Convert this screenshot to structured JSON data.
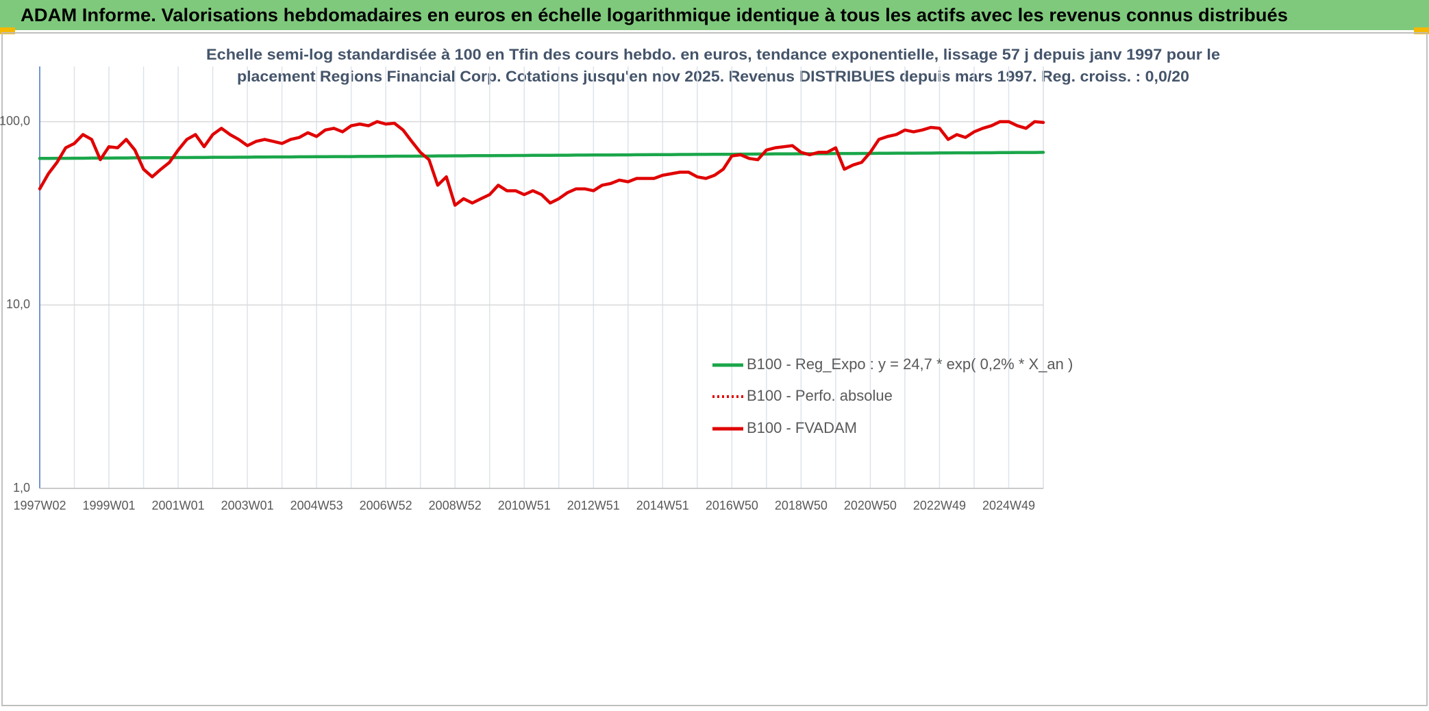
{
  "chart_data": {
    "type": "line",
    "header": "ADAM Informe. Valorisations hebdomadaires en euros en échelle logarithmique identique à tous les actifs avec les revenus connus distribués",
    "subtitle": [
      "Echelle semi-log standardisée à 100 en Tfin des cours hebdo. en euros, tendance exponentielle, lissage 57 j depuis janv 1997 pour le",
      "placement Regions Financial Corp. Cotations jusqu'en nov 2025. Revenus DISTRIBUES depuis mars 1997. Reg. croiss. : 0,0/20"
    ],
    "log_scale": true,
    "grid": true,
    "legend_position": "right",
    "ylim": [
      1,
      200
    ],
    "yticks": [
      {
        "value": 1,
        "label": "1,0"
      },
      {
        "value": 10,
        "label": "10,0"
      },
      {
        "value": 100,
        "label": "100,0"
      }
    ],
    "categories": [
      "1997W02",
      null,
      null,
      null,
      null,
      null,
      null,
      null,
      "1999W01",
      null,
      null,
      null,
      null,
      null,
      null,
      null,
      "2001W01",
      null,
      null,
      null,
      null,
      null,
      null,
      null,
      "2003W01",
      null,
      null,
      null,
      null,
      null,
      null,
      null,
      "2004W53",
      null,
      null,
      null,
      null,
      null,
      null,
      null,
      "2006W52",
      null,
      null,
      null,
      null,
      null,
      null,
      null,
      "2008W52",
      null,
      null,
      null,
      null,
      null,
      null,
      null,
      "2010W51",
      null,
      null,
      null,
      null,
      null,
      null,
      null,
      "2012W51",
      null,
      null,
      null,
      null,
      null,
      null,
      null,
      "2014W51",
      null,
      null,
      null,
      null,
      null,
      null,
      null,
      "2016W50",
      null,
      null,
      null,
      null,
      null,
      null,
      null,
      "2018W50",
      null,
      null,
      null,
      null,
      null,
      null,
      null,
      "2020W50",
      null,
      null,
      null,
      null,
      null,
      null,
      null,
      "2022W49",
      null,
      null,
      null,
      null,
      null,
      null,
      null,
      "2024W49",
      null,
      null,
      null,
      null
    ],
    "series": [
      {
        "name": "B100 - Reg_Expo : y = 24,7 * exp( 0,2% *  X_an )",
        "color": "#1aa64a",
        "style": "solid",
        "values": [
          63.0,
          63.0,
          63.1,
          63.1,
          63.2,
          63.2,
          63.3,
          63.3,
          63.3,
          63.4,
          63.4,
          63.5,
          63.5,
          63.6,
          63.6,
          63.6,
          63.7,
          63.7,
          63.8,
          63.8,
          63.9,
          63.9,
          63.9,
          64.0,
          64.0,
          64.1,
          64.1,
          64.2,
          64.2,
          64.2,
          64.3,
          64.3,
          64.4,
          64.4,
          64.5,
          64.5,
          64.5,
          64.6,
          64.6,
          64.7,
          64.7,
          64.8,
          64.8,
          64.8,
          64.9,
          64.9,
          65.0,
          65.0,
          65.1,
          65.1,
          65.2,
          65.2,
          65.2,
          65.3,
          65.3,
          65.4,
          65.4,
          65.5,
          65.5,
          65.5,
          65.6,
          65.6,
          65.7,
          65.7,
          65.8,
          65.8,
          65.8,
          65.9,
          65.9,
          66.0,
          66.0,
          66.1,
          66.1,
          66.1,
          66.2,
          66.2,
          66.3,
          66.3,
          66.4,
          66.4,
          66.4,
          66.5,
          66.5,
          66.6,
          66.6,
          66.7,
          66.7,
          66.7,
          66.8,
          66.8,
          66.9,
          66.9,
          67.0,
          67.0,
          67.0,
          67.1,
          67.1,
          67.2,
          67.2,
          67.3,
          67.3,
          67.3,
          67.4,
          67.4,
          67.5,
          67.5,
          67.6,
          67.6,
          67.6,
          67.7,
          67.7,
          67.8,
          67.8,
          67.9,
          67.9,
          67.9,
          68.0
        ]
      },
      {
        "name": "B100 - Perfo. absolue",
        "color": "#e00000",
        "style": "dotted",
        "values": [
          43,
          52,
          60,
          72,
          76,
          85,
          80,
          62,
          73,
          72,
          80,
          70,
          55,
          50,
          55,
          60,
          70,
          80,
          85,
          73,
          85,
          92,
          85,
          80,
          74,
          78,
          80,
          78,
          76,
          80,
          82,
          87,
          83,
          90,
          92,
          88,
          95,
          97,
          95,
          100,
          97,
          98,
          90,
          78,
          68,
          62,
          45,
          50,
          35,
          38,
          36,
          38,
          40,
          45,
          42,
          42,
          40,
          42,
          40,
          36,
          38,
          41,
          43,
          43,
          42,
          45,
          46,
          48,
          47,
          49,
          49,
          49,
          51,
          52,
          53,
          53,
          50,
          49,
          51,
          55,
          65,
          66,
          63,
          62,
          70,
          72,
          73,
          74,
          68,
          66,
          68,
          68,
          72,
          55,
          58,
          60,
          68,
          80,
          83,
          85,
          90,
          88,
          90,
          93,
          92,
          80,
          85,
          82,
          88,
          92,
          95,
          100,
          100,
          95,
          92,
          100,
          99
        ]
      },
      {
        "name": "B100 - FVADAM",
        "color": "#e00000",
        "style": "solid",
        "values": [
          43,
          52,
          60,
          72,
          76,
          85,
          80,
          62,
          73,
          72,
          80,
          70,
          55,
          50,
          55,
          60,
          70,
          80,
          85,
          73,
          85,
          92,
          85,
          80,
          74,
          78,
          80,
          78,
          76,
          80,
          82,
          87,
          83,
          90,
          92,
          88,
          95,
          97,
          95,
          100,
          97,
          98,
          90,
          78,
          68,
          62,
          45,
          50,
          35,
          38,
          36,
          38,
          40,
          45,
          42,
          42,
          40,
          42,
          40,
          36,
          38,
          41,
          43,
          43,
          42,
          45,
          46,
          48,
          47,
          49,
          49,
          49,
          51,
          52,
          53,
          53,
          50,
          49,
          51,
          55,
          65,
          66,
          63,
          62,
          70,
          72,
          73,
          74,
          68,
          66,
          68,
          68,
          72,
          55,
          58,
          60,
          68,
          80,
          83,
          85,
          90,
          88,
          90,
          93,
          92,
          80,
          85,
          82,
          88,
          92,
          95,
          100,
          100,
          95,
          92,
          100,
          99
        ]
      }
    ]
  }
}
